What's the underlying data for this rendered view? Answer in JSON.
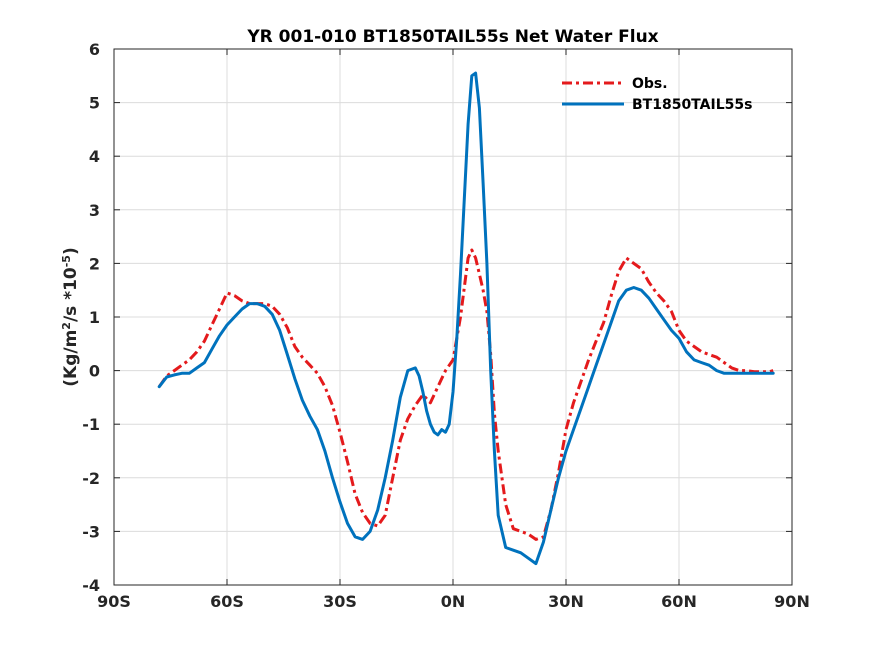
{
  "chart_data": {
    "type": "line",
    "title": "YR 001-010 BT1850TAIL55s  Net Water Flux",
    "ylabel": "(Kg/m2/s *10-5)",
    "ylabel_parts": {
      "pre": "(Kg/m",
      "sup1": "2",
      "mid": "/s *10",
      "sup2": "-5",
      "post": ")"
    },
    "xlabel": "",
    "xlim": [
      -90,
      90
    ],
    "ylim": [
      -4,
      6
    ],
    "grid": true,
    "legend_position": "top-right",
    "xticks": [
      -90,
      -60,
      -30,
      0,
      30,
      60,
      90
    ],
    "xtick_labels": [
      "90S",
      "60S",
      "30S",
      "0N",
      "30N",
      "60N",
      "90N"
    ],
    "yticks": [
      6,
      5,
      4,
      3,
      2,
      1,
      0,
      -1,
      -2,
      -3,
      -4
    ],
    "ytick_labels": [
      "6",
      "5",
      "4",
      "3",
      "2",
      "1",
      "0",
      "-1",
      "-2",
      "-3",
      "-4"
    ],
    "series": [
      {
        "name": "Obs.",
        "color": "#e41a1c",
        "style": "dashdot",
        "x": [
          -78,
          -76,
          -74,
          -72,
          -70,
          -68,
          -66,
          -64,
          -62,
          -60,
          -58,
          -56,
          -54,
          -52,
          -50,
          -48,
          -46,
          -44,
          -42,
          -40,
          -38,
          -36,
          -34,
          -32,
          -30,
          -28,
          -26,
          -24,
          -22,
          -20,
          -18,
          -16,
          -14,
          -12,
          -10,
          -8,
          -6,
          -4,
          -2,
          0,
          2,
          4,
          5,
          6,
          7,
          8,
          9,
          10,
          11,
          12,
          14,
          16,
          18,
          20,
          22,
          24,
          26,
          28,
          30,
          32,
          34,
          36,
          38,
          40,
          42,
          44,
          46,
          48,
          50,
          52,
          54,
          56,
          58,
          60,
          62,
          64,
          66,
          68,
          70,
          72,
          74,
          76,
          78,
          80,
          82,
          84,
          85
        ],
        "y": [
          -0.3,
          -0.1,
          0.0,
          0.1,
          0.2,
          0.35,
          0.55,
          0.85,
          1.15,
          1.45,
          1.4,
          1.3,
          1.25,
          1.25,
          1.25,
          1.2,
          1.05,
          0.8,
          0.45,
          0.25,
          0.1,
          -0.05,
          -0.3,
          -0.65,
          -1.15,
          -1.7,
          -2.3,
          -2.65,
          -2.85,
          -2.9,
          -2.7,
          -2.0,
          -1.3,
          -0.9,
          -0.65,
          -0.45,
          -0.6,
          -0.3,
          0.0,
          0.2,
          1.0,
          2.1,
          2.25,
          2.1,
          1.8,
          1.5,
          1.1,
          0.3,
          -0.8,
          -1.5,
          -2.5,
          -2.95,
          -3.0,
          -3.05,
          -3.15,
          -3.1,
          -2.6,
          -1.9,
          -1.1,
          -0.6,
          -0.2,
          0.2,
          0.55,
          0.9,
          1.4,
          1.85,
          2.1,
          2.0,
          1.9,
          1.65,
          1.45,
          1.3,
          1.1,
          0.75,
          0.55,
          0.45,
          0.35,
          0.3,
          0.25,
          0.15,
          0.05,
          0.0,
          0.0,
          -0.02,
          -0.02,
          -0.02,
          0.0
        ]
      },
      {
        "name": "BT1850TAIL55s",
        "color": "#0072bd",
        "style": "solid",
        "x": [
          -78,
          -76,
          -74,
          -72,
          -70,
          -68,
          -66,
          -64,
          -62,
          -60,
          -58,
          -56,
          -54,
          -52,
          -50,
          -48,
          -46,
          -44,
          -42,
          -40,
          -38,
          -36,
          -34,
          -32,
          -30,
          -28,
          -26,
          -24,
          -22,
          -20,
          -18,
          -16,
          -14,
          -12,
          -10,
          -9,
          -8,
          -7,
          -6,
          -5,
          -4,
          -3,
          -2,
          -1,
          0,
          1,
          2,
          3,
          4,
          5,
          6,
          7,
          8,
          9,
          10,
          11,
          12,
          14,
          16,
          18,
          20,
          22,
          24,
          26,
          28,
          30,
          32,
          34,
          36,
          38,
          40,
          42,
          44,
          46,
          48,
          50,
          52,
          54,
          56,
          58,
          60,
          62,
          64,
          66,
          68,
          70,
          72,
          74,
          76,
          78,
          80,
          82,
          84,
          85
        ],
        "y": [
          -0.3,
          -0.12,
          -0.08,
          -0.05,
          -0.05,
          0.05,
          0.15,
          0.4,
          0.65,
          0.85,
          1.0,
          1.15,
          1.25,
          1.25,
          1.2,
          1.05,
          0.75,
          0.3,
          -0.15,
          -0.55,
          -0.85,
          -1.1,
          -1.5,
          -2.0,
          -2.45,
          -2.85,
          -3.1,
          -3.15,
          -3.0,
          -2.6,
          -2.0,
          -1.3,
          -0.5,
          0.0,
          0.05,
          -0.1,
          -0.4,
          -0.75,
          -1.0,
          -1.15,
          -1.2,
          -1.1,
          -1.15,
          -1.0,
          -0.4,
          0.6,
          1.8,
          3.2,
          4.6,
          5.5,
          5.55,
          4.9,
          3.5,
          2.0,
          0.0,
          -1.5,
          -2.7,
          -3.3,
          -3.35,
          -3.4,
          -3.5,
          -3.6,
          -3.2,
          -2.6,
          -2.0,
          -1.5,
          -1.1,
          -0.7,
          -0.3,
          0.1,
          0.5,
          0.9,
          1.3,
          1.5,
          1.55,
          1.5,
          1.35,
          1.15,
          0.95,
          0.75,
          0.6,
          0.35,
          0.2,
          0.15,
          0.1,
          0.0,
          -0.05,
          -0.05,
          -0.05,
          -0.05,
          -0.05,
          -0.05,
          -0.05,
          -0.05
        ]
      }
    ]
  }
}
